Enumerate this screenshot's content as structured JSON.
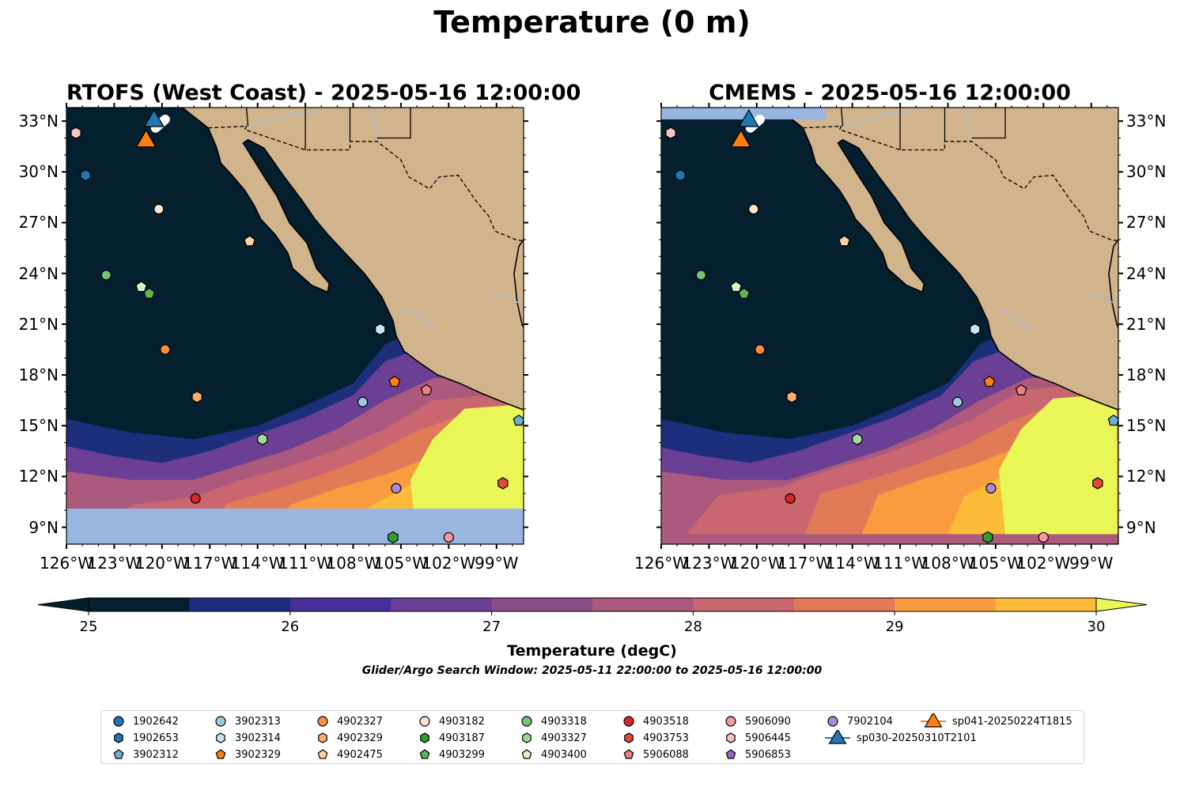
{
  "title": "Temperature (0 m)",
  "colorbar": {
    "label": "Temperature (degC)",
    "ticks": [
      "25",
      "26",
      "27",
      "28",
      "29",
      "30"
    ],
    "vmin": 25,
    "vmax": 30,
    "colors": [
      "#04202f",
      "#1d2e7c",
      "#47309c",
      "#6b3f93",
      "#8c4c88",
      "#ab5a7e",
      "#c96670",
      "#e17a57",
      "#f99c3f",
      "#fcbc3a"
    ],
    "under_color": "#04202f",
    "over_color": "#e8f756"
  },
  "search_window": "Glider/Argo Search Window: 2025-05-11 22:00:00 to 2025-05-16 12:00:00",
  "colors": {
    "land": "#d2b48c",
    "missing": "#98b6e0",
    "river": "#a3bcd6"
  },
  "panels": [
    {
      "title": "RTOFS (West Coast) - 2025-05-16 12:00:00",
      "lat_labels": [
        "9°N",
        "12°N",
        "15°N",
        "18°N",
        "21°N",
        "24°N",
        "27°N",
        "30°N",
        "33°N"
      ],
      "lon_labels": [
        "126°W",
        "123°W",
        "120°W",
        "117°W",
        "114°W",
        "111°W",
        "108°W",
        "105°W",
        "102°W",
        "99°W"
      ],
      "lat_label_side": "left"
    },
    {
      "title": "CMEMS - 2025-05-16 12:00:00",
      "lat_labels": [
        "9°N",
        "12°N",
        "15°N",
        "18°N",
        "21°N",
        "24°N",
        "27°N",
        "30°N",
        "33°N"
      ],
      "lon_labels": [
        "126°W",
        "123°W",
        "120°W",
        "117°W",
        "114°W",
        "111°W",
        "108°W",
        "105°W",
        "102°W",
        "99°W"
      ],
      "lat_label_side": "right"
    }
  ],
  "chart_data": {
    "type": "scatter",
    "xlim": [
      -126,
      -97.3
    ],
    "ylim": [
      8,
      33.8
    ],
    "series": [
      {
        "name": "1902642",
        "marker": "circle",
        "color": "#1f77b4",
        "points": []
      },
      {
        "name": "1902653",
        "marker": "hexagon",
        "color": "#1f77b4",
        "points": [
          [
            -124.8,
            29.8
          ]
        ]
      },
      {
        "name": "3902312",
        "marker": "pentagon",
        "color": "#6baed6",
        "points": [
          [
            -97.6,
            15.3
          ]
        ]
      },
      {
        "name": "3902313",
        "marker": "circle",
        "color": "#9ecae1",
        "points": [
          [
            -107.4,
            16.4
          ]
        ]
      },
      {
        "name": "3902314",
        "marker": "hexagon",
        "color": "#c6e5f5",
        "points": [
          [
            -106.3,
            20.7
          ]
        ]
      },
      {
        "name": "3902329",
        "marker": "pentagon",
        "color": "#ff7f0e",
        "points": [
          [
            -105.4,
            17.6
          ]
        ]
      },
      {
        "name": "4902327",
        "marker": "circle",
        "color": "#fd8d3c",
        "points": [
          [
            -119.8,
            19.5
          ]
        ]
      },
      {
        "name": "4902329",
        "marker": "hexagon",
        "color": "#fdae6b",
        "points": [
          [
            -117.8,
            16.7
          ]
        ]
      },
      {
        "name": "4902475",
        "marker": "pentagon",
        "color": "#fdd0a2",
        "points": [
          [
            -114.5,
            25.9
          ]
        ]
      },
      {
        "name": "4903182",
        "marker": "circle",
        "color": "#fee6ce",
        "points": [
          [
            -120.2,
            27.8
          ]
        ]
      },
      {
        "name": "4903187",
        "marker": "hexagon",
        "color": "#2ca02c",
        "points": [
          [
            -105.5,
            8.4
          ]
        ]
      },
      {
        "name": "4903299",
        "marker": "pentagon",
        "color": "#5ab45a",
        "points": [
          [
            -120.8,
            22.8
          ]
        ]
      },
      {
        "name": "4903318",
        "marker": "circle",
        "color": "#74c476",
        "points": [
          [
            -123.5,
            23.9
          ]
        ]
      },
      {
        "name": "4903327",
        "marker": "hexagon",
        "color": "#a1d99b",
        "points": [
          [
            -113.7,
            14.2
          ]
        ]
      },
      {
        "name": "4903400",
        "marker": "pentagon",
        "color": "#d9f5c8",
        "points": [
          [
            -121.3,
            23.2
          ]
        ]
      },
      {
        "name": "4903518",
        "marker": "circle",
        "color": "#d62728",
        "points": [
          [
            -117.9,
            10.7
          ]
        ]
      },
      {
        "name": "4903753",
        "marker": "hexagon",
        "color": "#e34a33",
        "points": [
          [
            -98.6,
            11.6
          ]
        ]
      },
      {
        "name": "5906088",
        "marker": "pentagon",
        "color": "#f08080",
        "points": [
          [
            -103.4,
            17.1
          ]
        ]
      },
      {
        "name": "5906090",
        "marker": "circle",
        "color": "#f29a9a",
        "points": [
          [
            -102.0,
            8.4
          ]
        ]
      },
      {
        "name": "5906445",
        "marker": "hexagon",
        "color": "#f7c4c4",
        "points": [
          [
            -125.4,
            32.3
          ]
        ]
      },
      {
        "name": "5906853",
        "marker": "pentagon",
        "color": "#9467bd",
        "points": []
      },
      {
        "name": "7902104",
        "marker": "circle",
        "color": "#b088d8",
        "points": [
          [
            -105.3,
            11.3
          ]
        ]
      },
      {
        "name": "sp030-20250310T2101",
        "marker": "triangle",
        "color": "#1f77b4",
        "points": [
          [
            -120.5,
            33.1
          ]
        ]
      },
      {
        "name": "sp041-20250224T1815",
        "marker": "triangle",
        "color": "#ff7f0e",
        "points": [
          [
            -121.0,
            31.9
          ]
        ]
      }
    ]
  }
}
